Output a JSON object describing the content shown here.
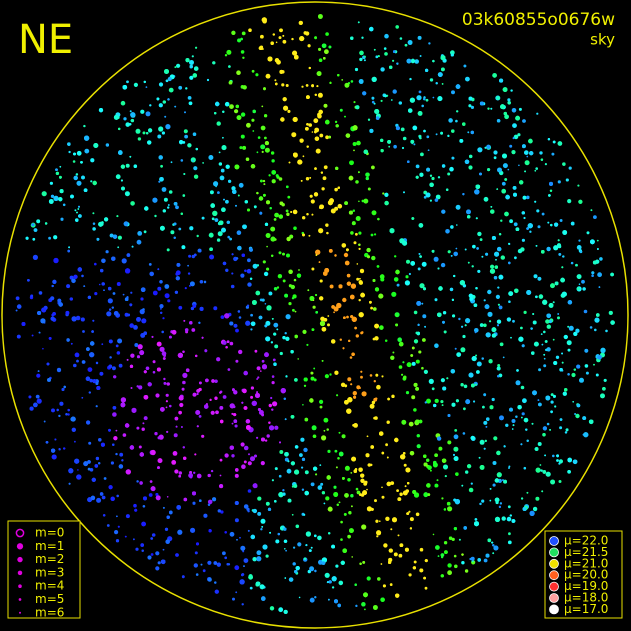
{
  "header": {
    "title": "NE",
    "frame_id": "03k60855o0676w",
    "kind": "sky"
  },
  "legend_m": {
    "items": [
      "m=0",
      "m=1",
      "m=2",
      "m=3",
      "m=4",
      "m=5",
      "m=6"
    ],
    "color": "#e000e0"
  },
  "legend_mu": {
    "items": [
      {
        "label": "μ=22.0",
        "color": "#2050ff"
      },
      {
        "label": "μ=21.5",
        "color": "#20e060"
      },
      {
        "label": "μ=21.0",
        "color": "#f0e000"
      },
      {
        "label": "μ=20.0",
        "color": "#ff6020"
      },
      {
        "label": "μ=19.0",
        "color": "#ff3030"
      },
      {
        "label": "μ=18.0",
        "color": "#ffa0a0"
      },
      {
        "label": "μ=17.0",
        "color": "#ffffff"
      }
    ]
  }
}
